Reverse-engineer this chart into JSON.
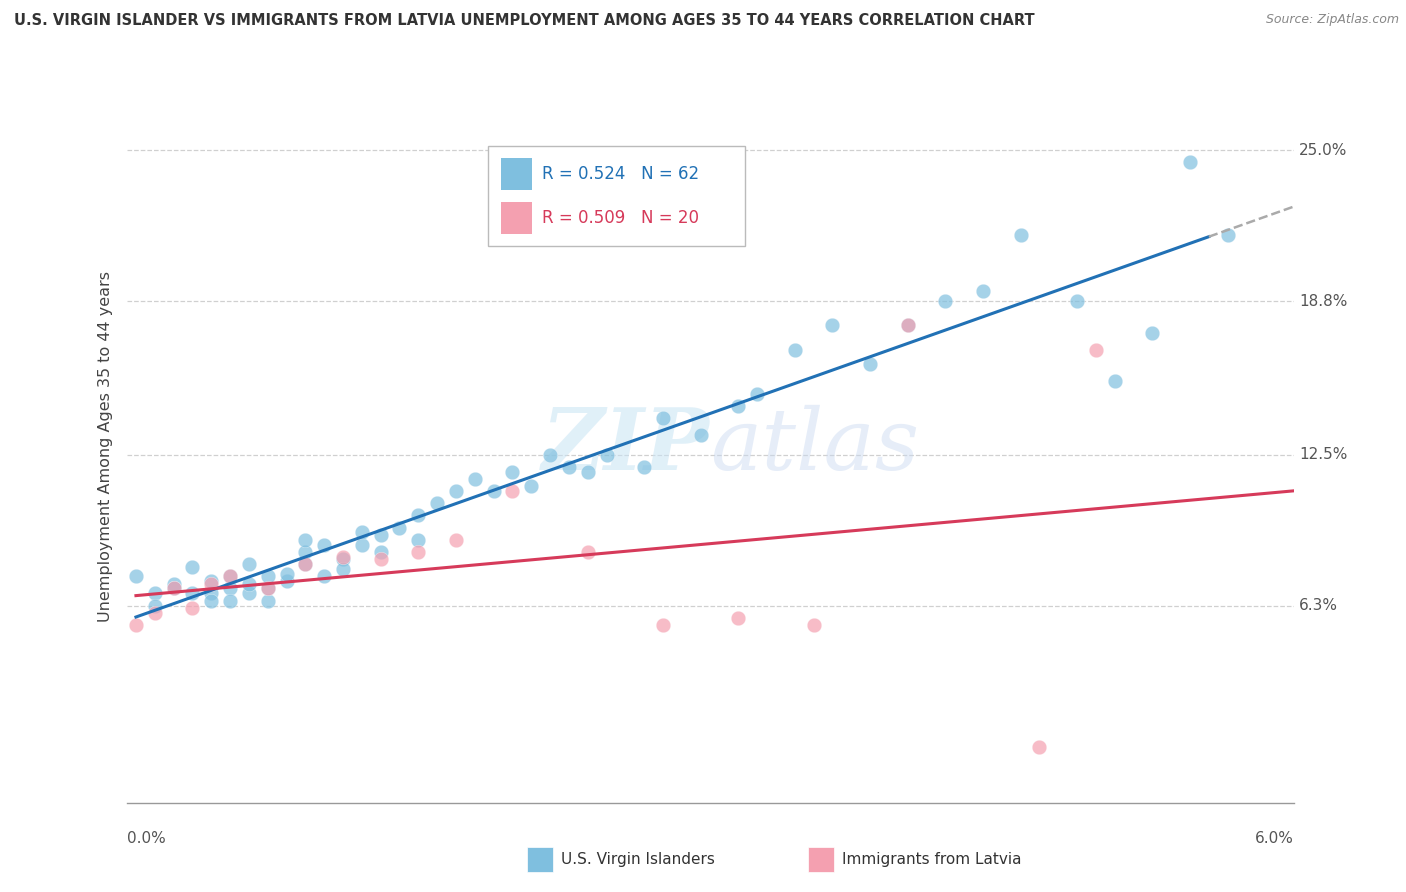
{
  "title": "U.S. VIRGIN ISLANDER VS IMMIGRANTS FROM LATVIA UNEMPLOYMENT AMONG AGES 35 TO 44 YEARS CORRELATION CHART",
  "source": "Source: ZipAtlas.com",
  "ylabel": "Unemployment Among Ages 35 to 44 years",
  "ytick_labels": [
    "6.3%",
    "12.5%",
    "18.8%",
    "25.0%"
  ],
  "ytick_values": [
    0.063,
    0.125,
    0.188,
    0.25
  ],
  "xlim": [
    -0.0005,
    0.0615
  ],
  "ylim": [
    -0.018,
    0.275
  ],
  "legend1_r": "R = 0.524",
  "legend1_n": "N = 62",
  "legend2_r": "R = 0.509",
  "legend2_n": "N = 20",
  "blue_color": "#7fbfdf",
  "pink_color": "#f4a0b0",
  "line_blue": "#2171b5",
  "line_pink": "#d63a5a",
  "watermark_zip": "ZIP",
  "watermark_atlas": "atlas",
  "blue_scatter_x": [
    0.0,
    0.001,
    0.001,
    0.002,
    0.002,
    0.003,
    0.003,
    0.004,
    0.004,
    0.004,
    0.005,
    0.005,
    0.005,
    0.006,
    0.006,
    0.006,
    0.007,
    0.007,
    0.007,
    0.008,
    0.008,
    0.009,
    0.009,
    0.009,
    0.01,
    0.01,
    0.011,
    0.011,
    0.012,
    0.012,
    0.013,
    0.013,
    0.014,
    0.015,
    0.015,
    0.016,
    0.017,
    0.018,
    0.019,
    0.02,
    0.021,
    0.022,
    0.023,
    0.024,
    0.025,
    0.027,
    0.028,
    0.03,
    0.032,
    0.033,
    0.035,
    0.037,
    0.039,
    0.041,
    0.043,
    0.045,
    0.047,
    0.05,
    0.052,
    0.054,
    0.056,
    0.058
  ],
  "blue_scatter_y": [
    0.075,
    0.068,
    0.063,
    0.072,
    0.07,
    0.068,
    0.079,
    0.068,
    0.073,
    0.065,
    0.07,
    0.065,
    0.075,
    0.08,
    0.068,
    0.072,
    0.065,
    0.07,
    0.075,
    0.073,
    0.076,
    0.08,
    0.085,
    0.09,
    0.088,
    0.075,
    0.082,
    0.078,
    0.088,
    0.093,
    0.085,
    0.092,
    0.095,
    0.09,
    0.1,
    0.105,
    0.11,
    0.115,
    0.11,
    0.118,
    0.112,
    0.125,
    0.12,
    0.118,
    0.125,
    0.12,
    0.14,
    0.133,
    0.145,
    0.15,
    0.168,
    0.178,
    0.162,
    0.178,
    0.188,
    0.192,
    0.215,
    0.188,
    0.155,
    0.175,
    0.245,
    0.215
  ],
  "pink_scatter_x": [
    0.0,
    0.001,
    0.002,
    0.003,
    0.004,
    0.005,
    0.007,
    0.009,
    0.011,
    0.013,
    0.015,
    0.017,
    0.02,
    0.024,
    0.028,
    0.032,
    0.036,
    0.041,
    0.048,
    0.051
  ],
  "pink_scatter_y": [
    0.055,
    0.06,
    0.07,
    0.062,
    0.072,
    0.075,
    0.07,
    0.08,
    0.083,
    0.082,
    0.085,
    0.09,
    0.11,
    0.085,
    0.055,
    0.058,
    0.055,
    0.178,
    0.005,
    0.168
  ]
}
